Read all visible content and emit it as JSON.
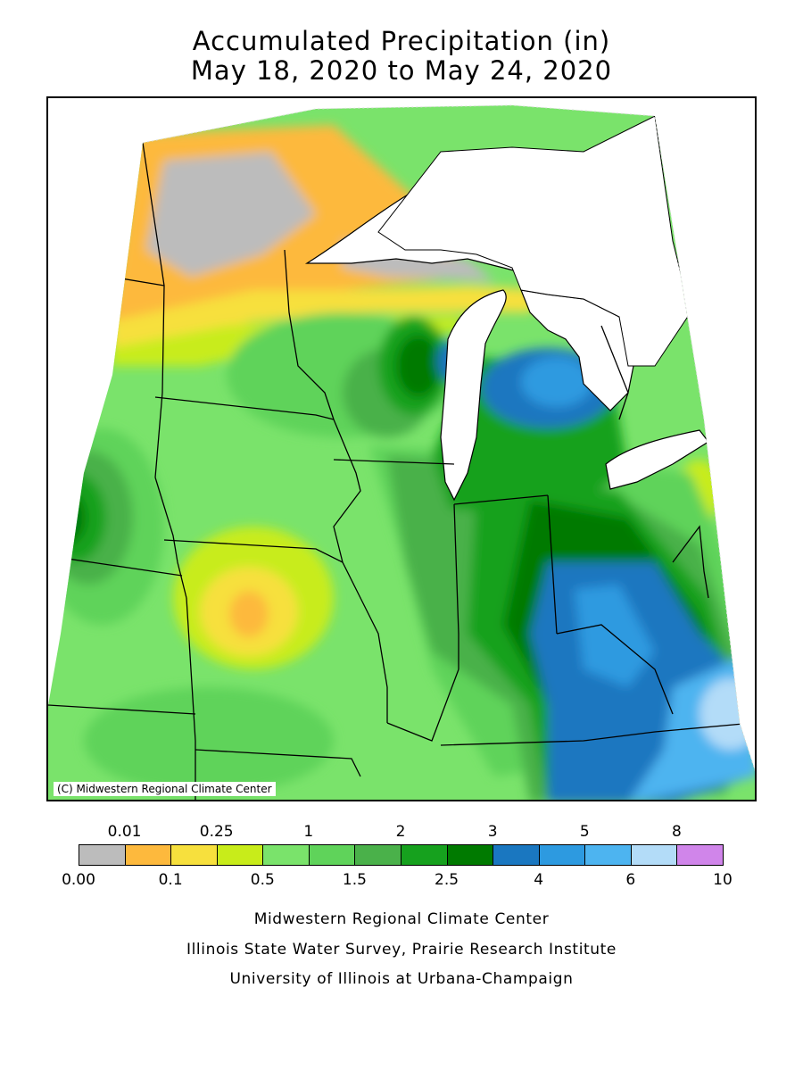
{
  "title": {
    "line1": "Accumulated Precipitation (in)",
    "line2": "May 18, 2020 to May 24, 2020"
  },
  "map": {
    "copyright": "(C) Midwestern Regional Climate Center",
    "land_color": "#7ae36b",
    "lake_color": "#ffffff"
  },
  "legend": {
    "colors": [
      "#bcbcbc",
      "#fdb93d",
      "#f7e03d",
      "#c8ec1a",
      "#7ae36b",
      "#5fd35a",
      "#4ab14a",
      "#16a11e",
      "#007a00",
      "#1a77c0",
      "#2d9ae0",
      "#4db4f0",
      "#b3dcf8",
      "#d085ea"
    ],
    "top_labels": [
      "0.01",
      "0.25",
      "1",
      "2",
      "3",
      "5",
      "8"
    ],
    "bottom_labels": [
      "0.00",
      "0.1",
      "0.5",
      "1.5",
      "2.5",
      "4",
      "6",
      "10"
    ]
  },
  "footer": {
    "line1": "Midwestern Regional Climate Center",
    "line2": "Illinois State Water Survey, Prairie Research Institute",
    "line3": "University of Illinois at Urbana-Champaign"
  }
}
